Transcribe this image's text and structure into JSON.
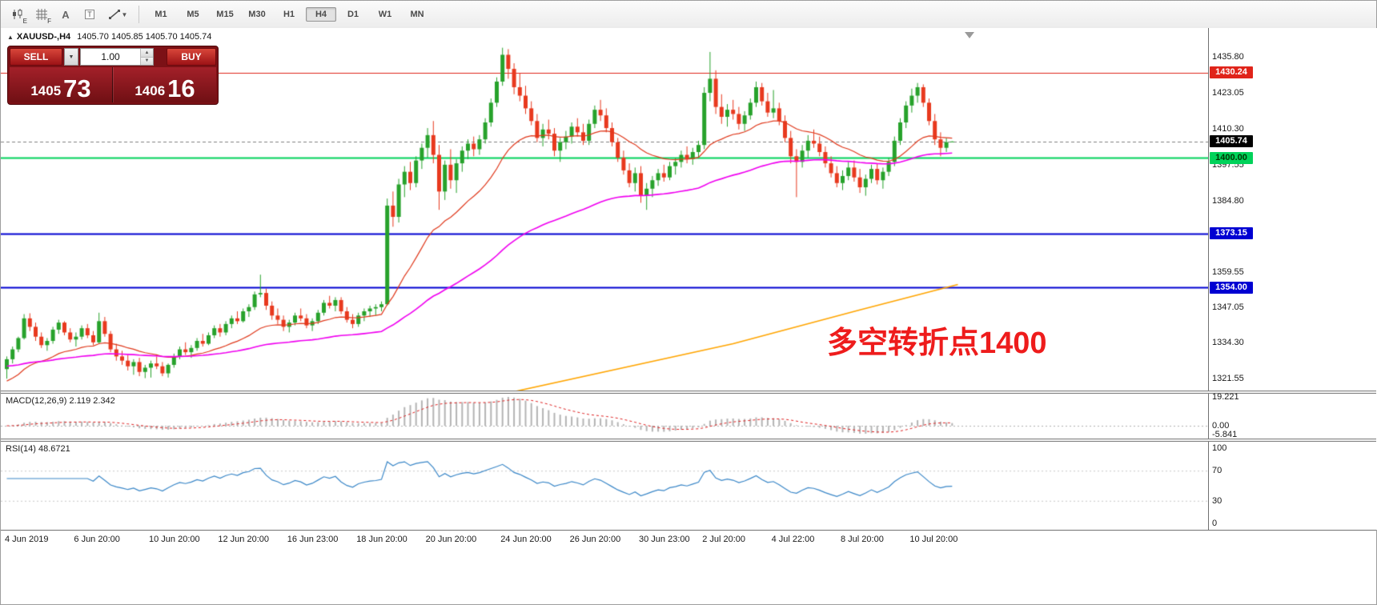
{
  "toolbar": {
    "icon_sub_e": "E",
    "icon_sub_f": "F",
    "icon_glyph_a": "A",
    "icon_glyph_t": "T",
    "dropdown_caret": "▼",
    "spinner_up": "▲",
    "spinner_down": "▼",
    "timeframes": [
      {
        "label": "M1",
        "active": false
      },
      {
        "label": "M5",
        "active": false
      },
      {
        "label": "M15",
        "active": false
      },
      {
        "label": "M30",
        "active": false
      },
      {
        "label": "H1",
        "active": false
      },
      {
        "label": "H4",
        "active": true
      },
      {
        "label": "D1",
        "active": false
      },
      {
        "label": "W1",
        "active": false
      },
      {
        "label": "MN",
        "active": false
      }
    ]
  },
  "chart_header": {
    "collapse_triangle": "▲",
    "symbol": "XAUUSD-,H4",
    "ohlc_text": "1405.70 1405.85 1405.70 1405.74"
  },
  "trade_panel": {
    "sell_label": "SELL",
    "buy_label": "BUY",
    "volume": "1.00",
    "sell_price_big": "1405",
    "sell_price_pips": "73",
    "buy_price_big": "1406",
    "buy_price_pips": "16"
  },
  "annotation": {
    "text": "多空转折点1400",
    "color": "#ee1c1c"
  },
  "indicators": {
    "macd": {
      "label": "MACD(12,26,9) 2.119 2.342",
      "axis": [
        {
          "text": "19.221",
          "value": 19.221
        },
        {
          "text": "0.00",
          "value": 0
        },
        {
          "text": "-5.841",
          "value": -5.841
        }
      ],
      "histogram_color": "#b4b4b4",
      "signal_color": "#e02020"
    },
    "rsi": {
      "label": "RSI(14) 48.6721",
      "axis": [
        {
          "text": "100",
          "value": 100
        },
        {
          "text": "70",
          "value": 70
        },
        {
          "text": "30",
          "value": 30
        },
        {
          "text": "0",
          "value": 0
        }
      ],
      "line_color": "#3a87c8",
      "levels": [
        70,
        30
      ]
    }
  },
  "price_axis": {
    "labels": [
      {
        "text": "1435.80",
        "price": 1435.8
      },
      {
        "text": "1423.05",
        "price": 1423.05
      },
      {
        "text": "1410.30",
        "price": 1410.3
      },
      {
        "text": "1397.55",
        "price": 1397.55
      },
      {
        "text": "1384.80",
        "price": 1384.8
      },
      {
        "text": "1359.55",
        "price": 1359.55
      },
      {
        "text": "1347.05",
        "price": 1347.05
      },
      {
        "text": "1334.30",
        "price": 1334.3
      },
      {
        "text": "1321.55",
        "price": 1321.55
      }
    ],
    "badges": [
      {
        "text": "1430.24",
        "price": 1430.24,
        "bg": "#e0241a",
        "fg": "#ffffff"
      },
      {
        "text": "1405.74",
        "price": 1405.74,
        "bg": "#000000",
        "fg": "#ffffff"
      },
      {
        "text": "1400.00",
        "price": 1400.0,
        "bg": "#00d25a",
        "fg": "#003300"
      },
      {
        "text": "1373.15",
        "price": 1373.15,
        "bg": "#0000d2",
        "fg": "#ffffff"
      },
      {
        "text": "1354.00",
        "price": 1354.0,
        "bg": "#0000d2",
        "fg": "#ffffff"
      }
    ]
  },
  "time_axis": [
    {
      "i": 0,
      "label": "4 Jun 2019"
    },
    {
      "i": 12,
      "label": "6 Jun 20:00"
    },
    {
      "i": 25,
      "label": "10 Jun 20:00"
    },
    {
      "i": 37,
      "label": "12 Jun 20:00"
    },
    {
      "i": 49,
      "label": "16 Jun 23:00"
    },
    {
      "i": 61,
      "label": "18 Jun 20:00"
    },
    {
      "i": 73,
      "label": "20 Jun 20:00"
    },
    {
      "i": 86,
      "label": "24 Jun 20:00"
    },
    {
      "i": 98,
      "label": "26 Jun 20:00"
    },
    {
      "i": 110,
      "label": "30 Jun 23:00"
    },
    {
      "i": 121,
      "label": "2 Jul 20:00"
    },
    {
      "i": 133,
      "label": "4 Jul 22:00"
    },
    {
      "i": 145,
      "label": "8 Jul 20:00"
    },
    {
      "i": 157,
      "label": "10 Jul 20:00"
    }
  ],
  "chart_data": {
    "type": "candlestick",
    "symbol": "XAUUSD-",
    "timeframe": "H4",
    "up_color": "#27a22b",
    "down_color": "#e8391e",
    "price_range": [
      1317.4,
      1446.0
    ],
    "current_price": 1405.74,
    "hlines": [
      {
        "price": 1430.24,
        "color": "#e0241a",
        "width": 1,
        "dashed": false
      },
      {
        "price": 1400.0,
        "color": "#00d25a",
        "width": 2,
        "dashed": false
      },
      {
        "price": 1373.15,
        "color": "#0000d2",
        "width": 2,
        "dashed": false
      },
      {
        "price": 1354.0,
        "color": "#0000d2",
        "width": 2,
        "dashed": false
      },
      {
        "price": 1405.74,
        "color": "#808080",
        "width": 1,
        "dashed": true
      }
    ],
    "ma_fast_color": "#e0391c",
    "ma_slow_color": "#f000f0",
    "ma_long_color": "#ffa500",
    "ma_orange_points": [
      [
        88,
        1317
      ],
      [
        126,
        1334
      ],
      [
        148,
        1346
      ],
      [
        165,
        1355
      ]
    ],
    "candles": [
      [
        1325.0,
        1329.5,
        1321.6,
        1328.5
      ],
      [
        1328.5,
        1333.0,
        1327.0,
        1332.0
      ],
      [
        1332.0,
        1336.5,
        1331.0,
        1336.0
      ],
      [
        1336.0,
        1344.5,
        1335.5,
        1343.0
      ],
      [
        1343.0,
        1344.8,
        1338.5,
        1340.0
      ],
      [
        1340.0,
        1341.5,
        1335.0,
        1336.5
      ],
      [
        1336.5,
        1338.0,
        1332.5,
        1333.5
      ],
      [
        1333.5,
        1336.0,
        1331.5,
        1335.0
      ],
      [
        1335.0,
        1340.0,
        1334.0,
        1339.0
      ],
      [
        1339.0,
        1342.5,
        1337.5,
        1341.5
      ],
      [
        1341.5,
        1342.0,
        1337.0,
        1338.0
      ],
      [
        1338.0,
        1339.5,
        1334.5,
        1335.5
      ],
      [
        1335.5,
        1338.0,
        1333.0,
        1336.5
      ],
      [
        1336.5,
        1340.5,
        1335.5,
        1339.5
      ],
      [
        1339.5,
        1341.0,
        1336.0,
        1337.0
      ],
      [
        1337.0,
        1338.5,
        1333.5,
        1334.5
      ],
      [
        1334.5,
        1345.0,
        1334.0,
        1342.0
      ],
      [
        1342.0,
        1343.5,
        1336.5,
        1337.5
      ],
      [
        1337.5,
        1338.5,
        1331.0,
        1332.0
      ],
      [
        1332.0,
        1334.0,
        1328.0,
        1329.5
      ],
      [
        1329.5,
        1331.5,
        1326.5,
        1328.0
      ],
      [
        1328.0,
        1330.0,
        1324.5,
        1326.0
      ],
      [
        1326.0,
        1328.5,
        1323.0,
        1327.5
      ],
      [
        1327.5,
        1329.0,
        1322.5,
        1324.0
      ],
      [
        1324.0,
        1326.5,
        1321.8,
        1325.5
      ],
      [
        1325.5,
        1328.0,
        1322.0,
        1327.0
      ],
      [
        1327.0,
        1329.5,
        1325.0,
        1326.0
      ],
      [
        1326.0,
        1327.5,
        1322.5,
        1323.5
      ],
      [
        1323.5,
        1327.0,
        1322.0,
        1326.5
      ],
      [
        1326.5,
        1330.5,
        1325.5,
        1329.5
      ],
      [
        1329.5,
        1333.0,
        1328.5,
        1332.0
      ],
      [
        1332.0,
        1334.5,
        1330.0,
        1331.0
      ],
      [
        1331.0,
        1333.5,
        1329.0,
        1332.5
      ],
      [
        1332.5,
        1336.0,
        1331.5,
        1335.0
      ],
      [
        1335.0,
        1337.5,
        1333.0,
        1334.0
      ],
      [
        1334.0,
        1338.0,
        1333.5,
        1337.0
      ],
      [
        1337.0,
        1340.5,
        1336.0,
        1339.5
      ],
      [
        1339.5,
        1341.0,
        1336.5,
        1338.0
      ],
      [
        1338.0,
        1342.0,
        1337.0,
        1341.0
      ],
      [
        1341.0,
        1344.0,
        1339.5,
        1343.0
      ],
      [
        1343.0,
        1345.5,
        1341.0,
        1342.0
      ],
      [
        1342.0,
        1346.5,
        1341.5,
        1345.5
      ],
      [
        1345.5,
        1348.0,
        1343.5,
        1347.0
      ],
      [
        1347.0,
        1352.5,
        1346.0,
        1351.5
      ],
      [
        1351.5,
        1358.5,
        1350.5,
        1352.0
      ],
      [
        1352.0,
        1353.5,
        1346.0,
        1347.5
      ],
      [
        1347.5,
        1349.0,
        1342.5,
        1344.0
      ],
      [
        1344.0,
        1346.5,
        1341.0,
        1342.5
      ],
      [
        1342.5,
        1344.0,
        1338.5,
        1340.0
      ],
      [
        1340.0,
        1342.5,
        1338.0,
        1341.5
      ],
      [
        1341.5,
        1345.0,
        1340.5,
        1344.0
      ],
      [
        1344.0,
        1346.5,
        1342.0,
        1343.0
      ],
      [
        1343.0,
        1344.5,
        1339.5,
        1340.5
      ],
      [
        1340.5,
        1343.0,
        1338.5,
        1342.0
      ],
      [
        1342.0,
        1346.0,
        1341.0,
        1345.0
      ],
      [
        1345.0,
        1349.5,
        1344.0,
        1348.5
      ],
      [
        1348.5,
        1351.0,
        1346.5,
        1347.5
      ],
      [
        1347.5,
        1350.5,
        1345.5,
        1349.5
      ],
      [
        1349.5,
        1350.5,
        1344.5,
        1345.5
      ],
      [
        1345.5,
        1347.0,
        1341.5,
        1342.5
      ],
      [
        1342.5,
        1344.5,
        1339.5,
        1341.0
      ],
      [
        1341.0,
        1345.0,
        1340.0,
        1344.0
      ],
      [
        1344.0,
        1346.5,
        1342.0,
        1345.5
      ],
      [
        1345.5,
        1347.5,
        1343.5,
        1346.5
      ],
      [
        1346.5,
        1348.0,
        1344.0,
        1347.0
      ],
      [
        1347.0,
        1349.0,
        1345.5,
        1348.0
      ],
      [
        1348.0,
        1385.5,
        1347.5,
        1383.0
      ],
      [
        1383.0,
        1388.0,
        1375.5,
        1379.0
      ],
      [
        1379.0,
        1392.5,
        1377.0,
        1390.5
      ],
      [
        1390.5,
        1397.0,
        1386.0,
        1395.0
      ],
      [
        1395.0,
        1398.5,
        1388.5,
        1391.0
      ],
      [
        1391.0,
        1400.5,
        1389.5,
        1399.0
      ],
      [
        1399.0,
        1405.0,
        1396.0,
        1403.5
      ],
      [
        1403.5,
        1410.5,
        1400.0,
        1408.0
      ],
      [
        1408.0,
        1413.0,
        1398.0,
        1401.0
      ],
      [
        1401.0,
        1404.5,
        1381.5,
        1388.0
      ],
      [
        1388.0,
        1399.0,
        1385.0,
        1397.5
      ],
      [
        1397.5,
        1403.0,
        1389.0,
        1392.0
      ],
      [
        1392.0,
        1399.5,
        1387.5,
        1398.0
      ],
      [
        1398.0,
        1404.0,
        1395.0,
        1402.5
      ],
      [
        1402.5,
        1406.5,
        1399.5,
        1405.0
      ],
      [
        1405.0,
        1407.5,
        1400.5,
        1403.0
      ],
      [
        1403.0,
        1408.0,
        1401.0,
        1406.5
      ],
      [
        1406.5,
        1414.0,
        1405.0,
        1412.5
      ],
      [
        1412.5,
        1421.0,
        1411.0,
        1419.5
      ],
      [
        1419.5,
        1428.5,
        1418.0,
        1427.0
      ],
      [
        1427.0,
        1439.0,
        1425.5,
        1436.5
      ],
      [
        1436.5,
        1438.5,
        1428.0,
        1431.5
      ],
      [
        1431.5,
        1433.5,
        1422.5,
        1425.0
      ],
      [
        1425.0,
        1430.0,
        1420.0,
        1422.0
      ],
      [
        1422.0,
        1425.5,
        1415.5,
        1417.5
      ],
      [
        1417.5,
        1420.0,
        1411.5,
        1413.0
      ],
      [
        1413.0,
        1415.5,
        1405.5,
        1407.0
      ],
      [
        1407.0,
        1412.0,
        1404.0,
        1410.0
      ],
      [
        1410.0,
        1413.5,
        1406.5,
        1408.5
      ],
      [
        1408.5,
        1410.5,
        1400.5,
        1402.5
      ],
      [
        1402.5,
        1407.0,
        1398.5,
        1405.5
      ],
      [
        1405.5,
        1409.5,
        1403.0,
        1407.5
      ],
      [
        1407.5,
        1412.5,
        1405.0,
        1411.0
      ],
      [
        1411.0,
        1414.0,
        1407.5,
        1409.0
      ],
      [
        1409.0,
        1412.0,
        1404.5,
        1406.0
      ],
      [
        1406.0,
        1413.5,
        1404.5,
        1412.0
      ],
      [
        1412.0,
        1418.5,
        1410.5,
        1417.0
      ],
      [
        1417.0,
        1420.5,
        1413.0,
        1415.0
      ],
      [
        1415.0,
        1417.5,
        1409.0,
        1410.5
      ],
      [
        1410.5,
        1412.5,
        1404.0,
        1405.5
      ],
      [
        1405.5,
        1407.0,
        1398.5,
        1400.0
      ],
      [
        1400.0,
        1402.5,
        1394.0,
        1395.5
      ],
      [
        1395.5,
        1398.0,
        1389.5,
        1391.0
      ],
      [
        1391.0,
        1396.5,
        1388.0,
        1394.5
      ],
      [
        1394.5,
        1397.0,
        1384.0,
        1386.5
      ],
      [
        1386.5,
        1391.0,
        1381.5,
        1389.0
      ],
      [
        1389.0,
        1393.5,
        1386.0,
        1392.0
      ],
      [
        1392.0,
        1396.0,
        1390.0,
        1394.5
      ],
      [
        1394.5,
        1397.5,
        1391.5,
        1393.0
      ],
      [
        1393.0,
        1398.5,
        1392.0,
        1397.0
      ],
      [
        1397.0,
        1400.0,
        1394.0,
        1398.5
      ],
      [
        1398.5,
        1402.5,
        1396.5,
        1401.0
      ],
      [
        1401.0,
        1404.0,
        1398.0,
        1399.5
      ],
      [
        1399.5,
        1403.5,
        1397.5,
        1402.0
      ],
      [
        1402.0,
        1406.0,
        1400.0,
        1404.5
      ],
      [
        1404.5,
        1425.0,
        1403.0,
        1423.0
      ],
      [
        1423.0,
        1437.5,
        1420.0,
        1428.0
      ],
      [
        1428.0,
        1431.0,
        1415.5,
        1418.0
      ],
      [
        1418.0,
        1422.5,
        1412.0,
        1414.5
      ],
      [
        1414.5,
        1419.0,
        1411.0,
        1417.0
      ],
      [
        1417.0,
        1420.5,
        1413.5,
        1415.5
      ],
      [
        1415.5,
        1418.0,
        1410.0,
        1412.0
      ],
      [
        1412.0,
        1416.5,
        1409.5,
        1415.0
      ],
      [
        1415.0,
        1421.0,
        1413.5,
        1419.5
      ],
      [
        1419.5,
        1427.0,
        1418.0,
        1425.0
      ],
      [
        1425.0,
        1426.5,
        1418.5,
        1420.0
      ],
      [
        1420.0,
        1423.0,
        1414.5,
        1416.0
      ],
      [
        1416.0,
        1424.0,
        1414.0,
        1417.5
      ],
      [
        1417.5,
        1419.5,
        1411.5,
        1413.0
      ],
      [
        1413.0,
        1415.0,
        1405.5,
        1407.0
      ],
      [
        1407.0,
        1409.5,
        1398.0,
        1400.5
      ],
      [
        1400.5,
        1403.0,
        1386.0,
        1398.5
      ],
      [
        1398.5,
        1404.5,
        1396.5,
        1402.5
      ],
      [
        1402.5,
        1408.0,
        1400.0,
        1406.0
      ],
      [
        1406.0,
        1410.0,
        1403.5,
        1405.0
      ],
      [
        1405.0,
        1407.5,
        1400.5,
        1402.0
      ],
      [
        1402.0,
        1404.0,
        1396.5,
        1398.0
      ],
      [
        1398.0,
        1400.5,
        1393.0,
        1394.5
      ],
      [
        1394.5,
        1397.0,
        1389.5,
        1391.0
      ],
      [
        1391.0,
        1395.5,
        1388.5,
        1393.5
      ],
      [
        1393.5,
        1398.5,
        1392.0,
        1396.5
      ],
      [
        1396.5,
        1399.0,
        1391.5,
        1393.0
      ],
      [
        1393.0,
        1396.0,
        1387.5,
        1389.5
      ],
      [
        1389.5,
        1394.0,
        1386.5,
        1392.5
      ],
      [
        1392.5,
        1397.5,
        1391.0,
        1396.0
      ],
      [
        1396.0,
        1398.0,
        1390.5,
        1392.0
      ],
      [
        1392.0,
        1396.5,
        1389.0,
        1395.0
      ],
      [
        1395.0,
        1400.0,
        1393.5,
        1398.5
      ],
      [
        1398.5,
        1407.5,
        1397.0,
        1406.0
      ],
      [
        1406.0,
        1414.0,
        1404.5,
        1412.5
      ],
      [
        1412.5,
        1420.0,
        1410.5,
        1418.5
      ],
      [
        1418.5,
        1424.5,
        1416.0,
        1422.0
      ],
      [
        1422.0,
        1426.5,
        1419.5,
        1425.0
      ],
      [
        1425.0,
        1426.0,
        1418.0,
        1419.5
      ],
      [
        1419.5,
        1421.0,
        1411.5,
        1413.0
      ],
      [
        1413.0,
        1415.5,
        1404.5,
        1406.5
      ],
      [
        1406.5,
        1409.0,
        1400.5,
        1403.5
      ],
      [
        1403.5,
        1407.0,
        1402.0,
        1405.5
      ],
      [
        1405.7,
        1405.85,
        1405.7,
        1405.74
      ]
    ]
  }
}
